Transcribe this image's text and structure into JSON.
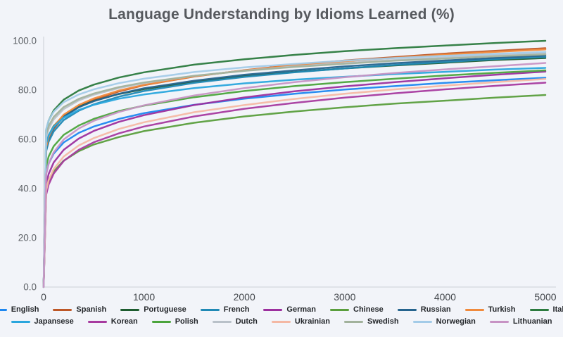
{
  "title": "Language Understanding by Idioms Learned (%)",
  "colors": {
    "background": "#f2f4f9",
    "axis_line": "#d4d7dd",
    "title_text": "#56595e",
    "tick_text": "#5c6065",
    "legend_text": "#24272b"
  },
  "chart_data": {
    "type": "line",
    "title": "Language Understanding by Idioms Learned (%)",
    "xlabel": "",
    "ylabel": "",
    "xlim": [
      0,
      5000
    ],
    "ylim": [
      0,
      100
    ],
    "grid": false,
    "legend_position": "bottom",
    "x_tick_labels": [
      "0",
      "1000",
      "2000",
      "3000",
      "4000",
      "5000"
    ],
    "x_tick_values": [
      0,
      1000,
      2000,
      3000,
      4000,
      5000
    ],
    "y_tick_labels": [
      "0.0",
      "20.0",
      "40.0",
      "60.0",
      "80.0",
      "100.0"
    ],
    "y_tick_values": [
      0,
      20,
      40,
      60,
      80,
      100
    ],
    "x": [
      0,
      25,
      50,
      100,
      200,
      350,
      500,
      750,
      1000,
      1500,
      2000,
      2500,
      3000,
      3500,
      4000,
      4500,
      5000
    ],
    "series": [
      {
        "name": "English",
        "color": "#1e87f0",
        "values": [
          0,
          46.2,
          50.1,
          54.2,
          58.7,
          62.6,
          65.2,
          68.3,
          70.6,
          74.0,
          76.5,
          78.5,
          80.2,
          81.6,
          82.9,
          84.0,
          85.0
        ]
      },
      {
        "name": "Spanish",
        "color": "#bd5727",
        "values": [
          0,
          55.6,
          59.8,
          64.3,
          69.2,
          73.3,
          76.1,
          79.4,
          82.0,
          85.5,
          88.1,
          90.2,
          92.0,
          93.4,
          94.8,
          95.9,
          97.0
        ]
      },
      {
        "name": "Portuguese",
        "color": "#1d5c2f",
        "values": [
          0,
          57.8,
          61.5,
          65.4,
          69.6,
          73.2,
          75.6,
          78.4,
          80.4,
          83.4,
          85.7,
          87.3,
          88.8,
          90.0,
          91.1,
          92.2,
          93.0
        ]
      },
      {
        "name": "French",
        "color": "#2089b5",
        "values": [
          0,
          55.1,
          59.0,
          63.2,
          67.8,
          71.6,
          74.2,
          77.3,
          79.6,
          82.9,
          85.3,
          87.2,
          88.8,
          90.2,
          91.4,
          92.6,
          93.5
        ]
      },
      {
        "name": "German",
        "color": "#9c2f9e",
        "values": [
          0,
          41.7,
          45.9,
          50.6,
          55.7,
          60.3,
          63.4,
          67.1,
          69.8,
          73.9,
          77.0,
          79.5,
          81.5,
          83.2,
          84.8,
          86.2,
          87.5
        ]
      },
      {
        "name": "Chinese",
        "color": "#5a9e3d",
        "values": [
          0,
          39.2,
          42.8,
          46.9,
          51.3,
          55.2,
          57.9,
          60.9,
          63.3,
          66.7,
          69.3,
          71.3,
          73.0,
          74.5,
          75.7,
          76.9,
          78.0
        ]
      },
      {
        "name": "Russian",
        "color": "#26648e",
        "values": [
          0,
          56.9,
          60.7,
          64.8,
          69.2,
          73.0,
          75.5,
          78.5,
          80.7,
          83.8,
          86.2,
          88.0,
          89.6,
          90.9,
          92.0,
          93.1,
          94.0
        ]
      },
      {
        "name": "Turkish",
        "color": "#f08a3c",
        "values": [
          0,
          56.8,
          60.9,
          65.2,
          70.0,
          73.9,
          76.6,
          79.8,
          82.1,
          85.6,
          88.0,
          90.0,
          91.7,
          93.1,
          94.4,
          95.5,
          96.5
        ]
      },
      {
        "name": "Italian",
        "color": "#2b7a3e",
        "values": [
          0,
          63.8,
          67.6,
          71.7,
          76.1,
          79.8,
          82.2,
          85.1,
          87.2,
          90.3,
          92.5,
          94.3,
          95.8,
          97.0,
          98.1,
          99.1,
          100.0
        ]
      },
      {
        "name": "Japansese",
        "color": "#2aa6dd",
        "values": [
          0,
          58.3,
          61.6,
          65.1,
          68.8,
          71.9,
          74.0,
          76.5,
          78.2,
          80.8,
          82.7,
          84.2,
          85.4,
          86.5,
          87.4,
          88.3,
          89.0
        ]
      },
      {
        "name": "Korean",
        "color": "#a73a9f",
        "values": [
          0,
          37.5,
          41.6,
          46.1,
          51.2,
          55.7,
          58.8,
          62.4,
          65.2,
          69.3,
          72.4,
          74.8,
          76.9,
          78.7,
          80.3,
          81.7,
          83.0
        ]
      },
      {
        "name": "Polish",
        "color": "#4ba43c",
        "values": [
          0,
          49.1,
          53.0,
          57.2,
          61.8,
          65.6,
          68.3,
          71.5,
          73.7,
          77.1,
          79.6,
          81.6,
          83.2,
          84.6,
          85.9,
          87.0,
          88.0
        ]
      },
      {
        "name": "Dutch",
        "color": "#b9c1c9",
        "values": [
          0,
          60.6,
          64.2,
          68.1,
          72.3,
          75.8,
          78.1,
          80.8,
          82.8,
          85.8,
          87.9,
          89.6,
          91.0,
          92.2,
          93.2,
          94.2,
          95.0
        ]
      },
      {
        "name": "Ukrainian",
        "color": "#f4b8a4",
        "values": [
          0,
          39.2,
          43.4,
          47.9,
          53.0,
          57.5,
          60.5,
          64.2,
          66.9,
          71.0,
          73.9,
          76.4,
          78.5,
          80.3,
          81.8,
          83.2,
          84.5
        ]
      },
      {
        "name": "Swedish",
        "color": "#a2b29c",
        "values": [
          0,
          61.9,
          65.4,
          69.1,
          73.1,
          76.4,
          78.6,
          81.2,
          83.1,
          85.8,
          87.8,
          89.4,
          90.7,
          91.9,
          92.8,
          93.7,
          94.5
        ]
      },
      {
        "name": "Norwegian",
        "color": "#a3cbe8",
        "values": [
          0,
          64.2,
          67.6,
          71.2,
          75.1,
          78.2,
          80.3,
          82.8,
          84.6,
          87.3,
          89.2,
          90.6,
          91.9,
          93.0,
          93.9,
          94.7,
          95.5
        ]
      },
      {
        "name": "Lithuanian",
        "color": "#c793c4",
        "values": [
          0,
          45.7,
          50.0,
          54.7,
          59.9,
          64.4,
          67.5,
          71.1,
          73.8,
          77.8,
          80.8,
          83.2,
          85.2,
          86.9,
          88.4,
          89.7,
          91.0
        ]
      }
    ],
    "legend_rows": [
      9,
      8
    ]
  }
}
